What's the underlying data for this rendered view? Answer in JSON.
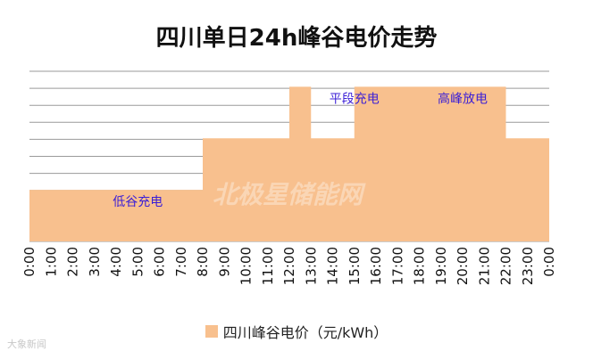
{
  "chart_data": {
    "type": "area",
    "title": "四川单日24h峰谷电价走势",
    "x": [
      "0:00",
      "1:00",
      "2:00",
      "3:00",
      "4:00",
      "5:00",
      "6:00",
      "7:00",
      "8:00",
      "9:00",
      "10:00",
      "11:00",
      "12:00",
      "13:00",
      "14:00",
      "15:00",
      "16:00",
      "17:00",
      "18:00",
      "19:00",
      "20:00",
      "21:00",
      "22:00",
      "23:00",
      "0:00"
    ],
    "series": [
      {
        "name": "四川峰谷电价（元/kWh）",
        "color": "#f8c08e",
        "values": [
          1,
          1,
          1,
          1,
          1,
          1,
          1,
          1,
          2,
          2,
          2,
          2,
          3,
          2,
          2,
          3,
          3,
          3,
          3,
          3,
          3,
          3,
          2,
          2,
          1
        ]
      }
    ],
    "ylim": [
      0,
      3.3
    ],
    "grid": true,
    "annotations": [
      {
        "text": "低谷充电",
        "at_x": 5
      },
      {
        "text": "平段充电",
        "at_x": 15
      },
      {
        "text": "高峰放电",
        "at_x": 20
      }
    ],
    "annotation_color": "#3b1fd6",
    "legend_position": "bottom"
  },
  "watermarks": {
    "center": "北极星储能网",
    "bottom_left": "大象新闻"
  }
}
